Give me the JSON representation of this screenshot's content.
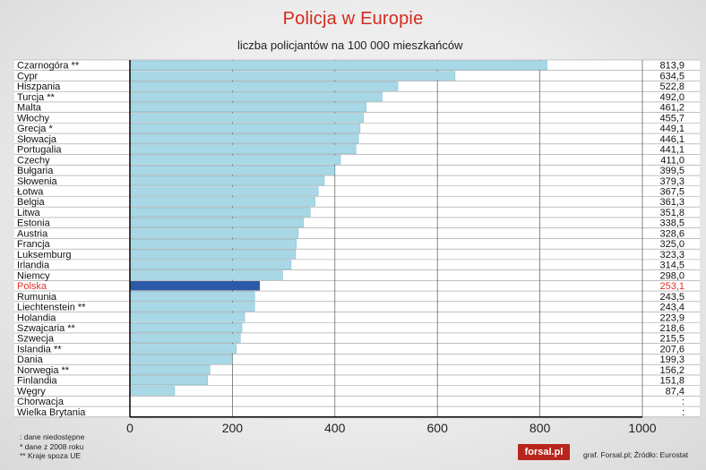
{
  "chart_data": {
    "type": "bar",
    "orientation": "horizontal",
    "title": "Policja w Europie",
    "subtitle": "liczba policjantów na 100 000 mieszkańców",
    "xlim": [
      0,
      1000
    ],
    "xticks": [
      "0",
      "200",
      "400",
      "600",
      "800",
      "1000"
    ],
    "grid": true,
    "categories": [
      "Czarnogóra **",
      "Cypr",
      "Hiszpania",
      "Turcja **",
      "Malta",
      "Włochy",
      "Grecja *",
      "Słowacja",
      "Portugalia",
      "Czechy",
      "Bułgaria",
      "Słowenia",
      "Łotwa",
      "Belgia",
      "Litwa",
      "Estonia",
      "Austria",
      "Francja",
      "Luksemburg",
      "Irlandia",
      "Niemcy",
      "Polska",
      "Rumunia",
      "Liechtenstein **",
      "Holandia",
      "Szwajcaria **",
      "Szwecja",
      "Islandia **",
      "Dania",
      "Norwegia **",
      "Finlandia",
      "Węgry",
      "Chorwacja",
      "Wielka Brytania"
    ],
    "values": [
      813.9,
      634.5,
      522.8,
      492.0,
      461.2,
      455.7,
      449.1,
      446.1,
      441.1,
      411.0,
      399.5,
      379.3,
      367.5,
      361.3,
      351.8,
      338.5,
      328.6,
      325.0,
      323.3,
      314.5,
      298.0,
      253.1,
      243.5,
      243.4,
      223.9,
      218.6,
      215.5,
      207.6,
      199.3,
      156.2,
      151.8,
      87.4,
      null,
      null
    ],
    "value_labels": [
      "813,9",
      "634,5",
      "522,8",
      "492,0",
      "461,2",
      "455,7",
      "449,1",
      "446,1",
      "441,1",
      "411,0",
      "399,5",
      "379,3",
      "367,5",
      "361,3",
      "351,8",
      "338,5",
      "328,6",
      "325,0",
      "323,3",
      "314,5",
      "298,0",
      "253,1",
      "243,5",
      "243,4",
      "223,9",
      "218,6",
      "215,5",
      "207,6",
      "199,3",
      "156,2",
      "151,8",
      "87,4",
      ":",
      ":"
    ],
    "highlight_category": "Polska",
    "colors": {
      "bar": "#a8d8e6",
      "bar_edge": "#7fbccd",
      "highlight_bar": "#2c5aa8",
      "highlight_label": "#e0322a",
      "grid": "#555555",
      "row_line": "#9a9a9a"
    }
  },
  "notes": [
    ": dane niedostępne",
    "* dane z 2008 roku",
    "** Kraje spoza UE"
  ],
  "logo_text": "forsal.pl",
  "credit": "graf. Forsal.pl;  Źródło: Eurostat"
}
